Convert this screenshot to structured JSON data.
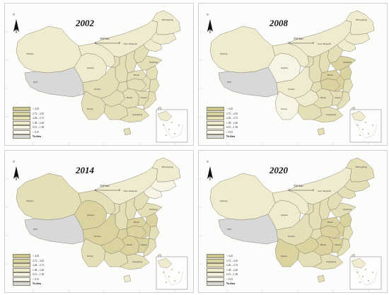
{
  "panels": [
    {
      "year": "2002",
      "fills": {
        "xinjiang": 2,
        "tibet": 0,
        "qinghai": 2,
        "gansu": 2,
        "inner_mongolia": 2,
        "heilongjiang": 2,
        "jilin": 2,
        "liaoning": 2,
        "hebei": 3,
        "shanxi": 3,
        "shaanxi": 3,
        "ningxia": 3,
        "sichuan": 3,
        "chongqing": 3,
        "yunnan": 3,
        "guizhou": 3,
        "guangxi": 3,
        "guangdong": 3,
        "hunan": 3,
        "hubei": 3,
        "henan": 3,
        "shandong": 3,
        "jiangsu": 3,
        "anhui": 3,
        "zhejiang": 3,
        "jiangxi": 3,
        "fujian": 3,
        "hainan": 3
      }
    },
    {
      "year": "2008",
      "fills": {
        "xinjiang": 2,
        "tibet": 0,
        "qinghai": 1,
        "gansu": 2,
        "inner_mongolia": 2,
        "heilongjiang": 2,
        "jilin": 2,
        "liaoning": 2,
        "hebei": 3,
        "shanxi": 3,
        "shaanxi": 3,
        "ningxia": 3,
        "sichuan": 2,
        "chongqing": 3,
        "yunnan": 1,
        "guizhou": 2,
        "guangxi": 3,
        "guangdong": 3,
        "hunan": 3,
        "hubei": 4,
        "henan": 4,
        "shandong": 4,
        "jiangsu": 4,
        "anhui": 4,
        "zhejiang": 3,
        "jiangxi": 3,
        "fujian": 3,
        "hainan": 3
      }
    },
    {
      "year": "2014",
      "fills": {
        "xinjiang": 3,
        "tibet": 0,
        "qinghai": 4,
        "gansu": 3,
        "inner_mongolia": 2,
        "heilongjiang": 2,
        "jilin": 1,
        "liaoning": 1,
        "hebei": 3,
        "shanxi": 3,
        "shaanxi": 3,
        "ningxia": 3,
        "sichuan": 4,
        "chongqing": 4,
        "yunnan": 3,
        "guizhou": 4,
        "guangxi": 3,
        "guangdong": 3,
        "hunan": 4,
        "hubei": 4,
        "henan": 4,
        "shandong": 3,
        "jiangsu": 4,
        "anhui": 4,
        "zhejiang": 3,
        "jiangxi": 4,
        "fujian": 3,
        "hainan": 2
      }
    },
    {
      "year": "2020",
      "fills": {
        "xinjiang": 2,
        "tibet": 0,
        "qinghai": 2,
        "gansu": 2,
        "inner_mongolia": 2,
        "heilongjiang": 3,
        "jilin": 3,
        "liaoning": 3,
        "hebei": 3,
        "shanxi": 3,
        "shaanxi": 3,
        "ningxia": 3,
        "sichuan": 3,
        "chongqing": 3,
        "yunnan": 4,
        "guizhou": 4,
        "guangxi": 3,
        "guangdong": 3,
        "hunan": 4,
        "hubei": 4,
        "henan": 4,
        "shandong": 3,
        "jiangsu": 4,
        "anhui": 4,
        "zhejiang": 3,
        "jiangxi": 4,
        "fujian": 3,
        "hainan": 3
      }
    }
  ],
  "legend": [
    {
      "label": "> 4.25",
      "color": "#cdc48a"
    },
    {
      "label": "2.72 – 4.25",
      "color": "#dad39f"
    },
    {
      "label": "2.26 – 2.72",
      "color": "#e5dfb7"
    },
    {
      "label": "1.38 – 2.26",
      "color": "#efebcf"
    },
    {
      "label": "0.15 – 1.38",
      "color": "#f7f4e3"
    },
    {
      "label": "< 0.15",
      "color": "#fdfcf5"
    },
    {
      "label": "No data",
      "color": "#d8d8d8"
    }
  ],
  "class_colors": [
    "#d8d8d8",
    "#f7f4e3",
    "#efebcf",
    "#e5dfb7",
    "#dad39f",
    "#cdc48a"
  ],
  "scale_text": "500 km",
  "north_text": "N",
  "province_labels": {
    "xinjiang": "Xinjiang",
    "tibet": "Tibet",
    "qinghai": "Qinghai",
    "inner_mongolia": "Inner Mongolia",
    "heilongjiang": "Heilongjiang",
    "sichuan": "Sichuan",
    "yunnan": "Yunnan",
    "guangdong": "Guangdong",
    "hunan": "Hunan",
    "henan": "Henan",
    "shandong": "Shandong",
    "jiangxi": "Jiangxi"
  }
}
